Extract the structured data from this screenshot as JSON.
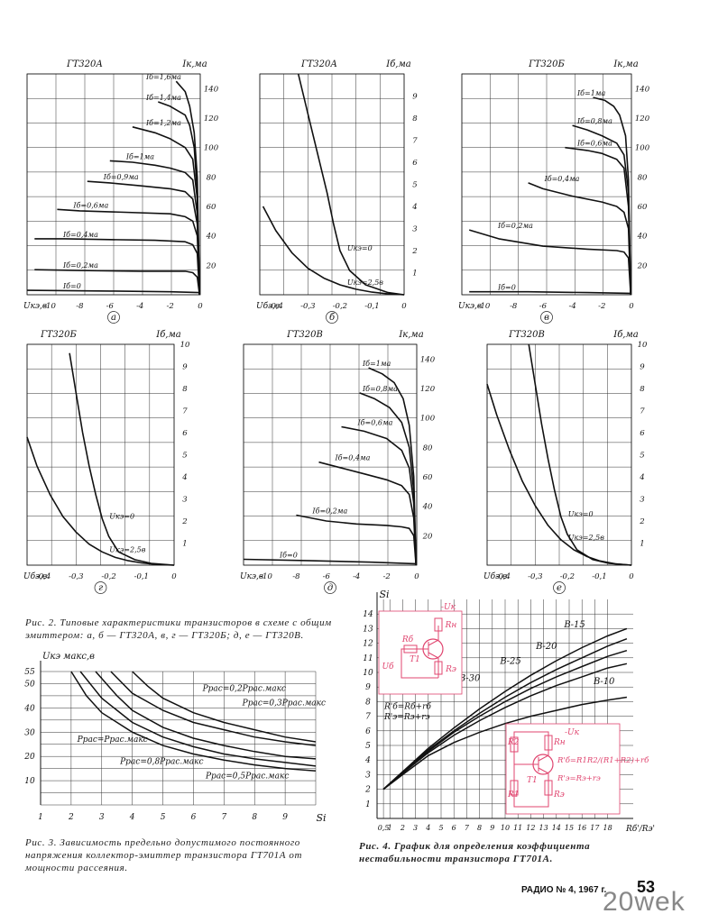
{
  "page": {
    "caption_fig2": "Рис. 2. Типовые характеристики транзисторов в схеме с общим эмиттером: а, б — ГТ320А, в, г — ГТ320Б; д, е — ГТ320В.",
    "caption_fig3": "Рис. 3. Зависимость предельно допустимого постоянного напряжения коллектор-эмиттер транзистора ГТ701А от мощности рассеяния.",
    "caption_fig4": "Рис. 4. График для определения коэффициента нестабильности транзистора ГТ701А.",
    "footer": "РАДИО № 4, 1967 г.",
    "page_number": "53",
    "watermark": "20wek"
  },
  "chart_data": [
    {
      "type": "line",
      "panel_letter": "а",
      "title": "ГТ320А",
      "xlabel": "Uкэ,в",
      "ylabel": "Iк,ма",
      "xlim": [
        -11.5,
        0
      ],
      "ylim": [
        0,
        150
      ],
      "x_ticks": [
        -10,
        -8,
        -6,
        -4,
        -2,
        0
      ],
      "y_ticks": [
        20,
        40,
        60,
        80,
        100,
        120,
        140
      ],
      "series": [
        {
          "name": "Iб=1,6ма",
          "x": [
            -0.05,
            -0.2,
            -0.4,
            -0.7,
            -1.0,
            -1.6
          ],
          "y": [
            0,
            80,
            110,
            128,
            138,
            145
          ]
        },
        {
          "name": "Iб=1,4ма",
          "x": [
            -0.05,
            -0.2,
            -0.4,
            -0.7,
            -1.0,
            -2.0,
            -2.8
          ],
          "y": [
            0,
            70,
            100,
            115,
            122,
            128,
            131
          ]
        },
        {
          "name": "Iб=1,2ма",
          "x": [
            -0.05,
            -0.2,
            -0.5,
            -1.0,
            -2.0,
            -3.0,
            -4.5
          ],
          "y": [
            0,
            65,
            92,
            100,
            106,
            110,
            114
          ]
        },
        {
          "name": "Iб=1ма",
          "x": [
            -0.05,
            -0.2,
            -0.5,
            -1.0,
            -2.0,
            -3.0,
            -4.5,
            -6.0
          ],
          "y": [
            0,
            55,
            78,
            83,
            86,
            88,
            90,
            91
          ]
        },
        {
          "name": "Iб=0,9ма",
          "x": [
            -0.05,
            -0.2,
            -0.5,
            -1.0,
            -2.0,
            -4.0,
            -6.0,
            -7.5
          ],
          "y": [
            0,
            48,
            65,
            70,
            72,
            74,
            76,
            77
          ]
        },
        {
          "name": "Iб=0,6ма",
          "x": [
            -0.05,
            -0.2,
            -0.5,
            -1.0,
            -2.0,
            -5.0,
            -8.0,
            -9.5
          ],
          "y": [
            0,
            40,
            50,
            53,
            55,
            56,
            57,
            58
          ]
        },
        {
          "name": "Iб=0,4ма",
          "x": [
            -0.05,
            -0.2,
            -0.5,
            -1.0,
            -3.0,
            -6.0,
            -9.0,
            -11.0
          ],
          "y": [
            0,
            28,
            34,
            36,
            37,
            37.5,
            38,
            38
          ]
        },
        {
          "name": "Iб=0,2ма",
          "x": [
            -0.05,
            -0.2,
            -0.5,
            -1.0,
            -4.0,
            -8.0,
            -11.0
          ],
          "y": [
            0,
            12,
            15,
            16,
            16,
            16.5,
            17
          ]
        },
        {
          "name": "Iб=0",
          "x": [
            -0.1,
            -2.0,
            -6.0,
            -11.5
          ],
          "y": [
            1.5,
            2,
            2.5,
            3
          ]
        }
      ]
    },
    {
      "type": "line",
      "panel_letter": "б",
      "title": "ГТ320А",
      "xlabel": "Uбэ,в",
      "ylabel": "Iб,ма",
      "xlim": [
        -0.45,
        0
      ],
      "ylim": [
        0,
        10
      ],
      "x_ticks": [
        -0.4,
        -0.3,
        -0.2,
        -0.1,
        0
      ],
      "y_ticks": [
        1,
        2,
        3,
        4,
        5,
        6,
        7,
        8,
        9
      ],
      "series": [
        {
          "name": "Uкэ=0",
          "x": [
            -0.33,
            -0.3,
            -0.27,
            -0.24,
            -0.22,
            -0.2,
            -0.17,
            -0.12,
            -0.05,
            0
          ],
          "y": [
            10,
            8.2,
            6.4,
            4.6,
            3.2,
            2.0,
            1.1,
            0.45,
            0.1,
            0
          ]
        },
        {
          "name": "Uкэ=2,5в",
          "x": [
            -0.44,
            -0.4,
            -0.35,
            -0.3,
            -0.25,
            -0.2,
            -0.15,
            -0.1,
            -0.05,
            0
          ],
          "y": [
            4.0,
            2.9,
            1.9,
            1.2,
            0.75,
            0.45,
            0.25,
            0.12,
            0.04,
            0
          ]
        }
      ]
    },
    {
      "type": "line",
      "panel_letter": "в",
      "title": "ГТ320Б",
      "xlabel": "Uкэ,в",
      "ylabel": "Iк,ма",
      "xlim": [
        -11.5,
        0
      ],
      "ylim": [
        0,
        150
      ],
      "x_ticks": [
        -10,
        -8,
        -6,
        -4,
        -2,
        0
      ],
      "y_ticks": [
        20,
        40,
        60,
        80,
        100,
        120,
        140
      ],
      "series": [
        {
          "name": "Iб=1ма",
          "x": [
            -0.05,
            -0.2,
            -0.4,
            -0.8,
            -1.2,
            -1.8,
            -2.6
          ],
          "y": [
            0,
            78,
            108,
            122,
            128,
            132,
            134
          ]
        },
        {
          "name": "Iб=0,8ма",
          "x": [
            -0.05,
            -0.2,
            -0.5,
            -1.0,
            -2.0,
            -3.0,
            -4.0
          ],
          "y": [
            0,
            70,
            95,
            103,
            108,
            112,
            115
          ]
        },
        {
          "name": "Iб=0,6ма",
          "x": [
            -0.05,
            -0.2,
            -0.5,
            -1.0,
            -2.0,
            -3.0,
            -4.5
          ],
          "y": [
            0,
            60,
            86,
            92,
            96,
            98,
            100
          ]
        },
        {
          "name": "Iб=0,4ма",
          "x": [
            -0.05,
            -0.2,
            -0.5,
            -1.0,
            -2.0,
            -4.0,
            -6.0,
            -7.0
          ],
          "y": [
            0,
            45,
            56,
            60,
            63,
            67,
            72,
            76
          ]
        },
        {
          "name": "Iб=0,2ма",
          "x": [
            -0.05,
            -0.2,
            -0.5,
            -1.0,
            -3.0,
            -6.0,
            -9.0,
            -11.0
          ],
          "y": [
            0,
            25,
            29,
            30,
            31,
            33,
            38,
            44
          ]
        },
        {
          "name": "Iб=0",
          "x": [
            -0.1,
            -3.0,
            -7.0,
            -11.0
          ],
          "y": [
            1,
            1.5,
            2,
            2
          ]
        }
      ]
    },
    {
      "type": "line",
      "panel_letter": "г",
      "title": "ГТ320Б",
      "xlabel": "Uбэ,в",
      "ylabel": "Iб,ма",
      "xlim": [
        -0.45,
        0
      ],
      "ylim": [
        0,
        10
      ],
      "x_ticks": [
        -0.4,
        -0.3,
        -0.2,
        -0.1,
        0
      ],
      "y_ticks": [
        1,
        2,
        3,
        4,
        5,
        6,
        7,
        8,
        9,
        10
      ],
      "series": [
        {
          "name": "Uкэ=0",
          "x": [
            -0.32,
            -0.3,
            -0.28,
            -0.26,
            -0.24,
            -0.22,
            -0.2,
            -0.17,
            -0.12,
            -0.07,
            0
          ],
          "y": [
            9.6,
            7.8,
            6.0,
            4.5,
            3.2,
            2.1,
            1.3,
            0.6,
            0.25,
            0.08,
            0
          ]
        },
        {
          "name": "Uкэ=2,5в",
          "x": [
            -0.45,
            -0.42,
            -0.38,
            -0.34,
            -0.3,
            -0.26,
            -0.22,
            -0.18,
            -0.14,
            -0.1,
            -0.05,
            0
          ],
          "y": [
            5.8,
            4.5,
            3.2,
            2.2,
            1.5,
            0.95,
            0.6,
            0.35,
            0.2,
            0.1,
            0.03,
            0
          ]
        }
      ]
    },
    {
      "type": "line",
      "panel_letter": "д",
      "title": "ГТ320В",
      "xlabel": "Uкэ,в",
      "ylabel": "Iк,ма",
      "xlim": [
        -11.5,
        0
      ],
      "ylim": [
        0,
        150
      ],
      "x_ticks": [
        -10,
        -8,
        -6,
        -4,
        -2,
        0
      ],
      "y_ticks": [
        20,
        40,
        60,
        80,
        100,
        120,
        140
      ],
      "series": [
        {
          "name": "Iб=1ма",
          "x": [
            -0.05,
            -0.2,
            -0.5,
            -0.9,
            -1.5,
            -2.3,
            -3.2
          ],
          "y": [
            0,
            60,
            95,
            113,
            124,
            130,
            134
          ]
        },
        {
          "name": "Iб=0,8ма",
          "x": [
            -0.05,
            -0.2,
            -0.5,
            -1.0,
            -1.8,
            -2.8,
            -3.8
          ],
          "y": [
            0,
            50,
            80,
            97,
            107,
            113,
            117
          ]
        },
        {
          "name": "Iб=0,6ма",
          "x": [
            -0.05,
            -0.2,
            -0.5,
            -1.0,
            -2.0,
            -3.5,
            -5.0
          ],
          "y": [
            0,
            42,
            66,
            78,
            86,
            91,
            94
          ]
        },
        {
          "name": "Iб=0,4ма",
          "x": [
            -0.05,
            -0.2,
            -0.5,
            -1.0,
            -2.0,
            -3.5,
            -5.0,
            -6.5
          ],
          "y": [
            0,
            32,
            48,
            54,
            58,
            62,
            66,
            70
          ]
        },
        {
          "name": "Iб=0,2ма",
          "x": [
            -0.05,
            -0.2,
            -0.5,
            -1.0,
            -2.0,
            -4.0,
            -6.0,
            -8.0
          ],
          "y": [
            0,
            20,
            25,
            26,
            27,
            28,
            30,
            34
          ]
        },
        {
          "name": "Iб=0",
          "x": [
            -0.1,
            -3.0,
            -7.0,
            -11.5
          ],
          "y": [
            1,
            2,
            3,
            4
          ]
        }
      ]
    },
    {
      "type": "line",
      "panel_letter": "е",
      "title": "ГТ320В",
      "xlabel": "Uбэ,в",
      "ylabel": "Iб,ма",
      "xlim": [
        -0.45,
        0
      ],
      "ylim": [
        0,
        10
      ],
      "x_ticks": [
        -0.4,
        -0.3,
        -0.2,
        -0.1,
        0
      ],
      "y_ticks": [
        1,
        2,
        3,
        4,
        5,
        6,
        7,
        8,
        9,
        10
      ],
      "series": [
        {
          "name": "Uкэ=0",
          "x": [
            -0.32,
            -0.3,
            -0.28,
            -0.26,
            -0.24,
            -0.22,
            -0.2,
            -0.17,
            -0.12,
            -0.07,
            0
          ],
          "y": [
            10,
            8.2,
            6.4,
            4.8,
            3.4,
            2.2,
            1.4,
            0.7,
            0.25,
            0.08,
            0
          ]
        },
        {
          "name": "Uкэ=2,5в",
          "x": [
            -0.45,
            -0.42,
            -0.38,
            -0.34,
            -0.3,
            -0.26,
            -0.22,
            -0.18,
            -0.14,
            -0.1,
            -0.05,
            0
          ],
          "y": [
            8.2,
            6.8,
            5.2,
            3.8,
            2.7,
            1.8,
            1.15,
            0.7,
            0.4,
            0.2,
            0.06,
            0
          ]
        }
      ]
    },
    {
      "type": "line",
      "title": "",
      "xlabel": "Si",
      "ylabel": "Uкэ макс,в",
      "xlim": [
        1,
        10
      ],
      "ylim": [
        0,
        55
      ],
      "x_ticks": [
        1,
        2,
        3,
        4,
        5,
        6,
        7,
        8,
        9
      ],
      "y_ticks": [
        10,
        20,
        30,
        40,
        50,
        55
      ],
      "series": [
        {
          "name": "Pрас=0,2Pрас.макс",
          "x": [
            4.0,
            4.5,
            5.0,
            6.0,
            7.0,
            8.0,
            9.0,
            10.0
          ],
          "y": [
            55,
            49,
            44,
            38,
            34,
            31,
            28,
            26
          ]
        },
        {
          "name": "Pрас=0,3Pрас.макс",
          "x": [
            3.3,
            4.0,
            5.0,
            6.0,
            7.0,
            8.0,
            9.0,
            10.0
          ],
          "y": [
            55,
            46,
            39,
            34,
            31,
            28,
            26,
            24.5
          ]
        },
        {
          "name": "Pрас=Pрас.макс",
          "x": [
            2.0,
            2.5,
            3.0,
            4.0,
            5.0,
            6.0,
            7.0,
            8.0,
            9.0,
            10.0
          ],
          "y": [
            55,
            45,
            38,
            30,
            24.5,
            21,
            18.5,
            16.5,
            15,
            14
          ]
        },
        {
          "name": "Pрас=0,8Pрас.макс",
          "x": [
            2.3,
            3.0,
            4.0,
            5.0,
            6.0,
            7.0,
            8.0,
            9.0,
            10.0
          ],
          "y": [
            55,
            44,
            34,
            28,
            24,
            21,
            19,
            17.5,
            16
          ]
        },
        {
          "name": "Pрас=0,5Pрас.макс",
          "x": [
            2.8,
            3.5,
            4.0,
            5.0,
            6.0,
            7.0,
            8.0,
            9.0,
            10.0
          ],
          "y": [
            55,
            45,
            39,
            32,
            27.5,
            24.5,
            22,
            20,
            19
          ]
        }
      ]
    },
    {
      "type": "line",
      "title": "",
      "xlabel": "Rб'/Rэ'",
      "ylabel": "Si",
      "xlim": [
        0,
        20
      ],
      "ylim": [
        0,
        15
      ],
      "x_tick_labels": [
        "0,5",
        "1",
        "2",
        "3",
        "4",
        "5",
        "6",
        "7",
        "8",
        "9",
        "10",
        "11",
        "12",
        "13",
        "14",
        "15",
        "16",
        "17",
        "18"
      ],
      "x_tick_values": [
        0.5,
        1,
        2,
        3,
        4,
        5,
        6,
        7,
        8,
        9,
        10,
        11,
        12,
        13,
        14,
        15,
        16,
        17,
        18
      ],
      "y_ticks": [
        1,
        2,
        3,
        4,
        5,
        6,
        7,
        8,
        9,
        10,
        11,
        12,
        13,
        14
      ],
      "series": [
        {
          "name": "В-15",
          "x": [
            0.5,
            2,
            4,
            6,
            8,
            10,
            12,
            14,
            16,
            18,
            19.5
          ],
          "y": [
            2.0,
            3.2,
            4.8,
            6.2,
            7.5,
            8.7,
            9.8,
            10.8,
            11.7,
            12.5,
            13.0
          ]
        },
        {
          "name": "В-20",
          "x": [
            0.5,
            2,
            4,
            6,
            8,
            10,
            12,
            14,
            16,
            18,
            19.5
          ],
          "y": [
            2.0,
            3.2,
            4.7,
            6.0,
            7.2,
            8.3,
            9.3,
            10.2,
            11.0,
            11.8,
            12.3
          ]
        },
        {
          "name": "В-25",
          "x": [
            0.5,
            2,
            4,
            6,
            8,
            10,
            12,
            14,
            16,
            18,
            19.5
          ],
          "y": [
            2.0,
            3.1,
            4.6,
            5.9,
            7.0,
            8.0,
            8.9,
            9.7,
            10.4,
            11.1,
            11.5
          ]
        },
        {
          "name": "В-30",
          "x": [
            0.5,
            2,
            4,
            6,
            8,
            10,
            12,
            14,
            16,
            18,
            19.5
          ],
          "y": [
            2.0,
            3.1,
            4.5,
            5.7,
            6.7,
            7.6,
            8.4,
            9.1,
            9.7,
            10.3,
            10.6
          ]
        },
        {
          "name": "В-10",
          "x": [
            0.5,
            2,
            4,
            6,
            8,
            10,
            12,
            14,
            16,
            18,
            19.5
          ],
          "y": [
            2.0,
            3.0,
            4.3,
            5.2,
            5.9,
            6.5,
            7.0,
            7.4,
            7.8,
            8.1,
            8.3
          ]
        }
      ],
      "inset_top_formulas": [
        "R'б=Rб+rб",
        "R'э=Rэ+rэ"
      ],
      "inset_top_labels": [
        "-Uк",
        "Rн",
        "Rб",
        "Т1",
        "Uб",
        "Rэ"
      ],
      "inset_bottom_labels": [
        "-Uк",
        "R2",
        "Rн",
        "R'б=R1R2/(R1+R2)+rб",
        "R'э=Rэ+rэ",
        "Т1",
        "R1",
        "Rэ"
      ]
    }
  ]
}
